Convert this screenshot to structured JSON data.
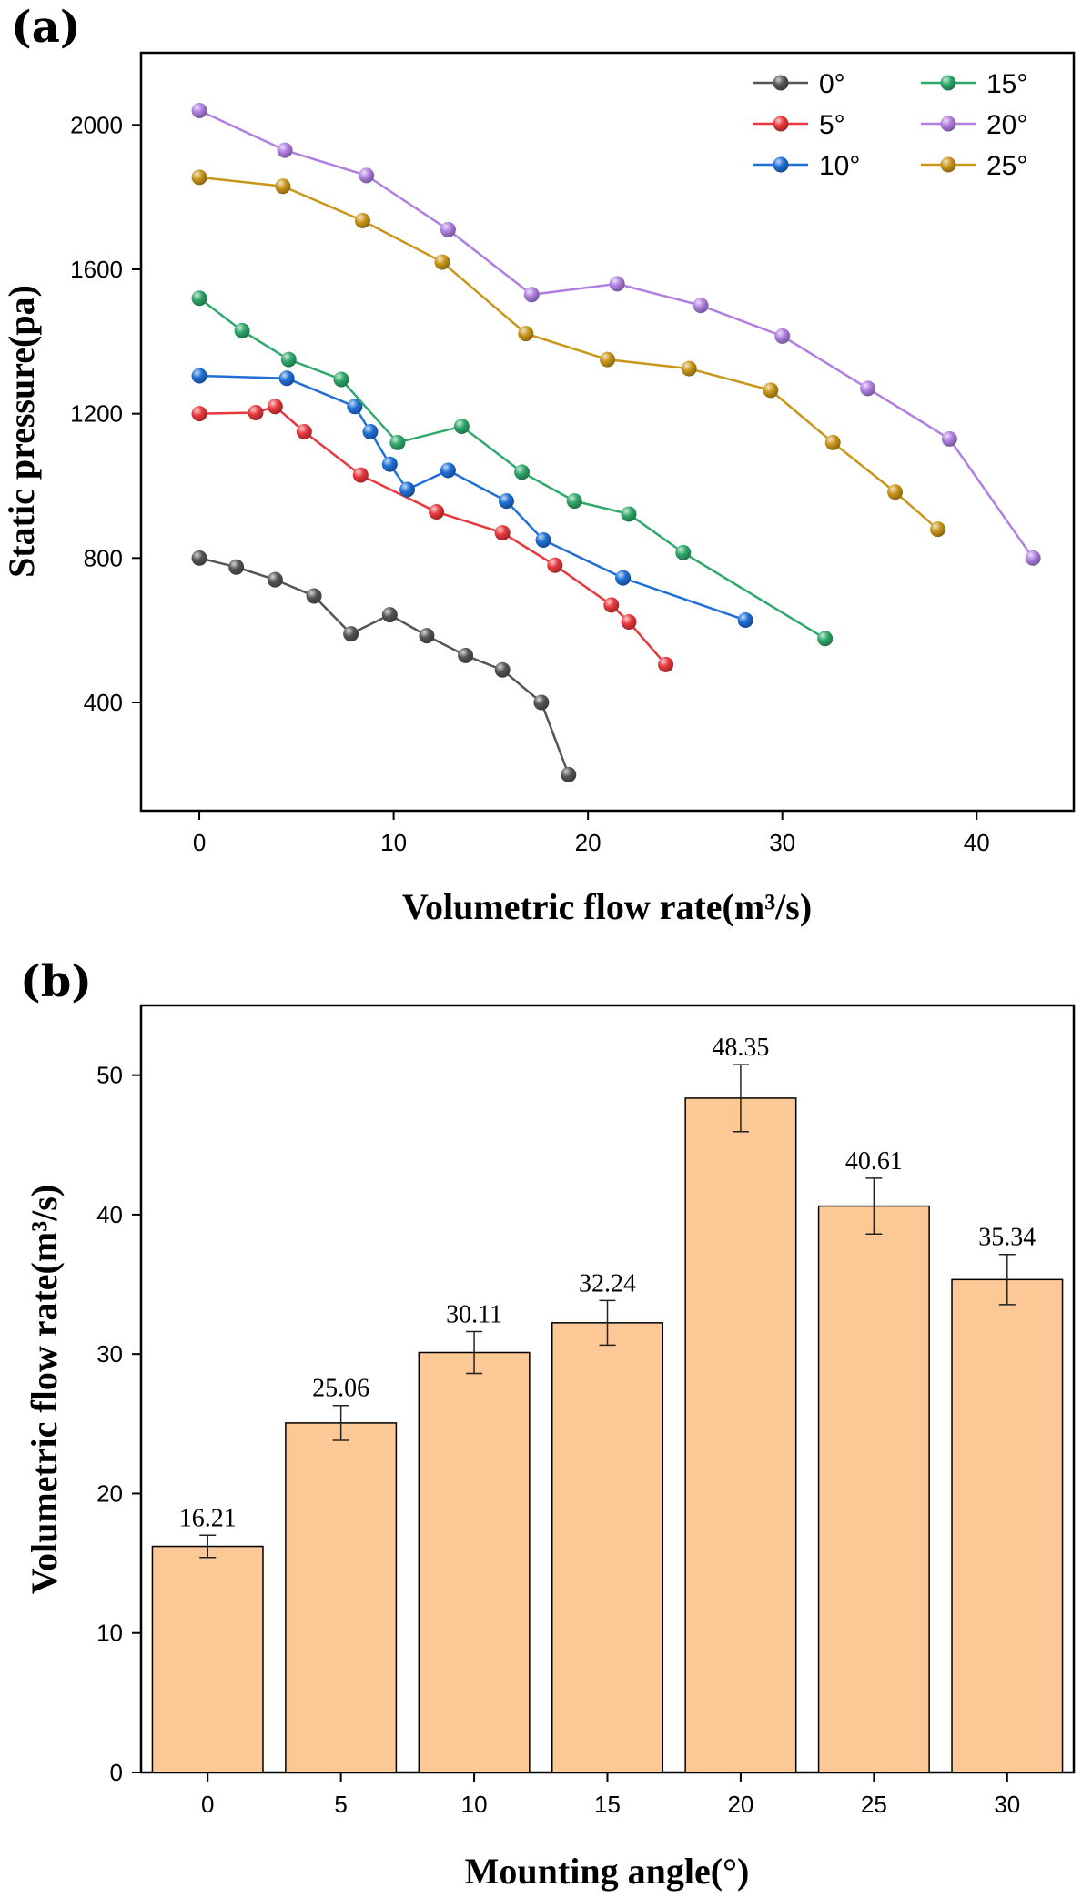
{
  "figure": {
    "panels": [
      {
        "label": "(a)"
      },
      {
        "label": "(b)"
      }
    ]
  },
  "chart_data": [
    {
      "type": "line",
      "panel": "(a)",
      "title": "",
      "xlabel": "Volumetric flow rate(m³/s)",
      "ylabel": "Static pressure(pa)",
      "xlim": [
        -3,
        45
      ],
      "ylim": [
        100,
        2200
      ],
      "xticks": [
        0,
        10,
        20,
        30,
        40
      ],
      "yticks": [
        400,
        800,
        1200,
        1600,
        2000
      ],
      "legend_position": "top-right",
      "legend_columns": 2,
      "series": [
        {
          "name": "0°",
          "color": "#555555",
          "x": [
            0,
            1.9,
            3.9,
            5.9,
            7.8,
            9.8,
            11.7,
            13.7,
            15.6,
            17.6,
            19
          ],
          "y": [
            800,
            775,
            740,
            695,
            590,
            643,
            585,
            530,
            490,
            400,
            200
          ]
        },
        {
          "name": "5°",
          "color": "#e8383d",
          "x": [
            0,
            2.9,
            3.9,
            5.4,
            8.3,
            12.2,
            15.6,
            18.3,
            21.2,
            22.1,
            24
          ],
          "y": [
            1200,
            1203,
            1220,
            1150,
            1030,
            928,
            870,
            780,
            670,
            623,
            505
          ]
        },
        {
          "name": "10°",
          "color": "#1f6fd6",
          "x": [
            0,
            4.5,
            8,
            8.8,
            9.8,
            10.7,
            12.8,
            15.8,
            17.7,
            21.8,
            28.1
          ],
          "y": [
            1305,
            1298,
            1220,
            1150,
            1060,
            990,
            1043,
            958,
            850,
            745,
            628
          ]
        },
        {
          "name": "15°",
          "color": "#2fa86b",
          "x": [
            0,
            2.2,
            4.6,
            7.3,
            10.2,
            13.5,
            16.6,
            19.3,
            22.1,
            24.9,
            32.2
          ],
          "y": [
            1520,
            1430,
            1350,
            1295,
            1120,
            1165,
            1038,
            958,
            922,
            815,
            577
          ]
        },
        {
          "name": "20°",
          "color": "#b07fe0",
          "x": [
            0,
            4.4,
            8.6,
            12.8,
            17.1,
            21.5,
            25.8,
            30,
            34.4,
            38.6,
            42.9
          ],
          "y": [
            2040,
            1930,
            1860,
            1710,
            1530,
            1560,
            1500,
            1415,
            1270,
            1130,
            800
          ]
        },
        {
          "name": "25°",
          "color": "#c9961a",
          "x": [
            0,
            4.3,
            8.4,
            12.5,
            16.8,
            21,
            25.2,
            29.4,
            32.6,
            35.8,
            38
          ],
          "y": [
            1855,
            1830,
            1735,
            1620,
            1422,
            1350,
            1325,
            1265,
            1120,
            983,
            880
          ]
        }
      ]
    },
    {
      "type": "bar",
      "panel": "(b)",
      "title": "",
      "xlabel": "Mounting angle(°)",
      "ylabel": "Volumetric flow rate(m³/s)",
      "ylim": [
        0,
        55
      ],
      "yticks": [
        0,
        10,
        20,
        30,
        40,
        50
      ],
      "categories": [
        "0",
        "5",
        "10",
        "15",
        "20",
        "25",
        "30"
      ],
      "values": [
        16.21,
        25.06,
        30.11,
        32.24,
        48.35,
        40.61,
        35.34
      ],
      "value_labels": [
        "16.21",
        "25.06",
        "30.11",
        "32.24",
        "48.35",
        "40.61",
        "35.34"
      ],
      "errors": [
        0.8,
        1.25,
        1.5,
        1.6,
        2.4,
        2.0,
        1.8
      ],
      "bar_color": "#fbc896",
      "bar_edge_color": "#000000"
    }
  ]
}
